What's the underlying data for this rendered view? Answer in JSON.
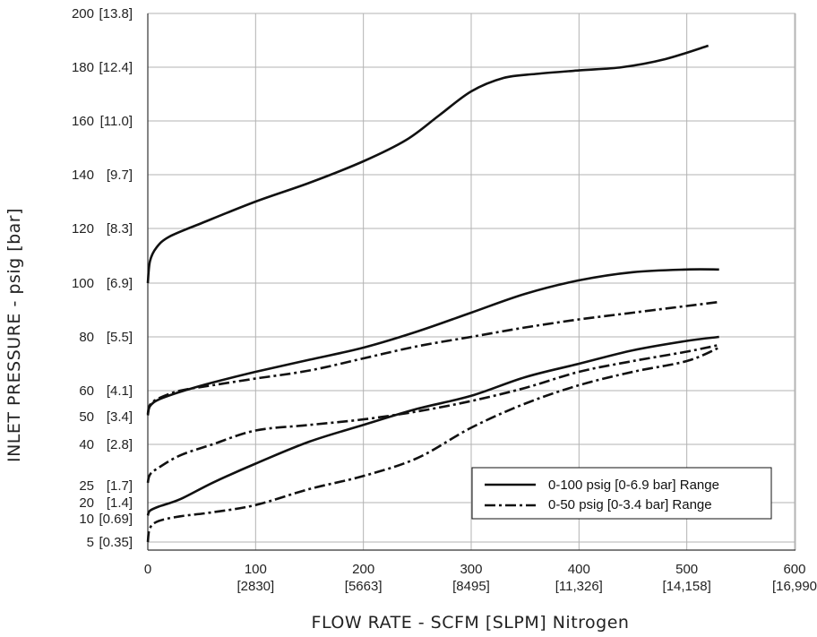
{
  "chart_data": {
    "type": "line",
    "xlabel": "FLOW RATE - SCFM [SLPM] Nitrogen",
    "ylabel": "INLET PRESSURE - psig [bar]",
    "xlim": [
      0,
      600
    ],
    "ylim_note": "non-linear y scale",
    "grid": true,
    "legend_position": "bottom-right",
    "x_ticks": [
      {
        "value": 0,
        "label": "0",
        "sub": ""
      },
      {
        "value": 100,
        "label": "100",
        "sub": "[2830]"
      },
      {
        "value": 200,
        "label": "200",
        "sub": "[5663]"
      },
      {
        "value": 300,
        "label": "300",
        "sub": "[8495]"
      },
      {
        "value": 400,
        "label": "400",
        "sub": "[11,326]"
      },
      {
        "value": 500,
        "label": "500",
        "sub": "[14,158]"
      },
      {
        "value": 600,
        "label": "600",
        "sub": "[16,990"
      }
    ],
    "y_ticks": [
      {
        "value": 5,
        "label": "5",
        "sub": "[0.35]"
      },
      {
        "value": 10,
        "label": "10",
        "sub": "[0.69]"
      },
      {
        "value": 20,
        "label": "20",
        "sub": "[1.4]"
      },
      {
        "value": 25,
        "label": "25",
        "sub": "[1.7]"
      },
      {
        "value": 40,
        "label": "40",
        "sub": "[2.8]"
      },
      {
        "value": 50,
        "label": "50",
        "sub": "[3.4]"
      },
      {
        "value": 60,
        "label": "60",
        "sub": "[4.1]"
      },
      {
        "value": 80,
        "label": "80",
        "sub": "[5.5]"
      },
      {
        "value": 100,
        "label": "100",
        "sub": "[6.9]"
      },
      {
        "value": 120,
        "label": "120",
        "sub": "[8.3]"
      },
      {
        "value": 140,
        "label": "140",
        "sub": "[9.7]"
      },
      {
        "value": 160,
        "label": "160",
        "sub": "[11.0]"
      },
      {
        "value": 180,
        "label": "180",
        "sub": "[12.4]"
      },
      {
        "value": 200,
        "label": "200",
        "sub": "[13.8]"
      }
    ],
    "legend": [
      {
        "label": "0-100 psig [0-6.9 bar] Range",
        "style": "solid"
      },
      {
        "label": "0-50 psig [0-3.4 bar] Range",
        "style": "dashdot"
      }
    ],
    "series": [
      {
        "style": "solid",
        "x": [
          0,
          2,
          8,
          20,
          50,
          100,
          150,
          200,
          240,
          270,
          300,
          330,
          360,
          400,
          440,
          480,
          520
        ],
        "y": [
          100,
          108,
          113,
          117,
          122,
          130,
          137,
          145,
          153,
          162,
          171,
          176,
          177.5,
          178.8,
          180,
          183,
          188
        ]
      },
      {
        "style": "solid",
        "x": [
          0,
          2,
          10,
          30,
          60,
          100,
          150,
          200,
          250,
          300,
          350,
          400,
          450,
          500,
          530
        ],
        "y": [
          50.5,
          54,
          56.5,
          59.5,
          63,
          67,
          71.5,
          76,
          82,
          89,
          96,
          101,
          104,
          105,
          105
        ]
      },
      {
        "style": "solid",
        "x": [
          0,
          2,
          10,
          30,
          60,
          100,
          150,
          200,
          250,
          300,
          350,
          400,
          450,
          500,
          530
        ],
        "y": [
          12,
          15,
          17.5,
          21,
          26,
          33,
          41,
          47,
          53,
          58,
          65,
          70,
          75,
          78.5,
          80
        ]
      },
      {
        "style": "dashdot",
        "x": [
          0,
          2,
          10,
          30,
          60,
          100,
          150,
          200,
          250,
          300,
          350,
          400,
          450,
          500,
          530
        ],
        "y": [
          51,
          54.5,
          57,
          60,
          62,
          64.5,
          67.5,
          72,
          76.5,
          80,
          83.5,
          86.5,
          89,
          91.5,
          93
        ]
      },
      {
        "style": "dashdot",
        "x": [
          0,
          2,
          10,
          30,
          60,
          100,
          150,
          200,
          250,
          300,
          350,
          400,
          450,
          500,
          530
        ],
        "y": [
          26,
          29,
          31.5,
          36,
          40,
          45,
          47,
          49,
          52,
          56,
          61,
          67,
          71,
          74.5,
          77
        ]
      },
      {
        "style": "dashdot",
        "x": [
          0,
          2,
          10,
          30,
          60,
          100,
          150,
          200,
          250,
          300,
          350,
          400,
          450,
          500,
          530
        ],
        "y": [
          5,
          8,
          9.5,
          11.5,
          14,
          18.5,
          24,
          28.5,
          35,
          46,
          55,
          62,
          67,
          71,
          76
        ]
      }
    ]
  }
}
